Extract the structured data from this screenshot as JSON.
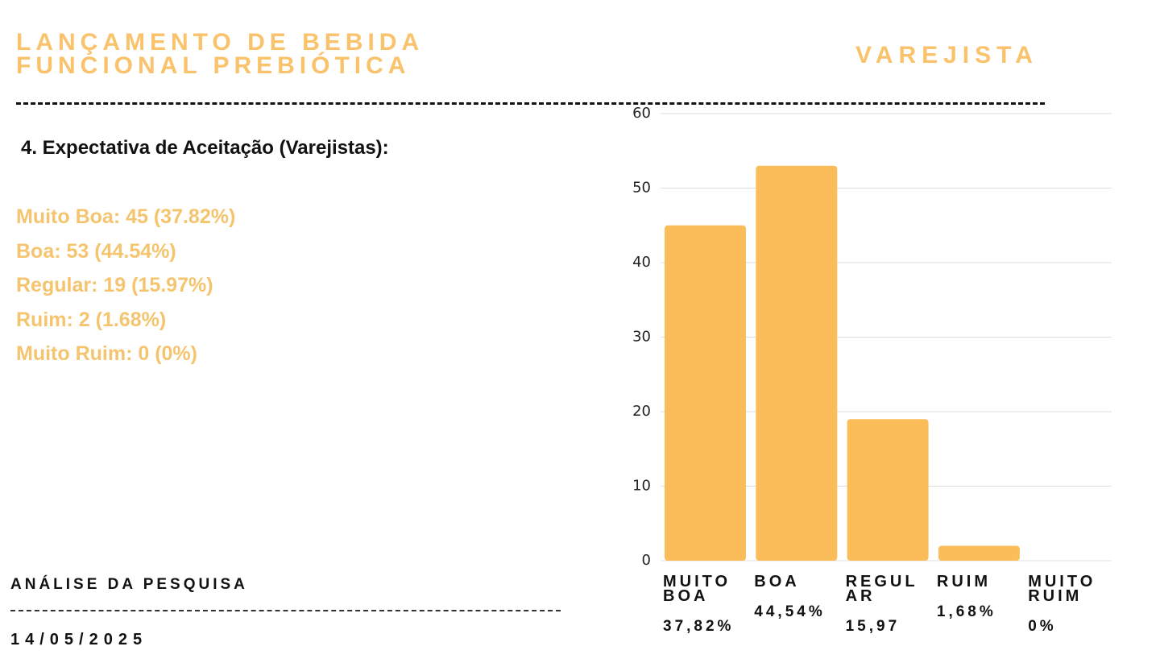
{
  "header": {
    "title_line1": "LANÇAMENTO DE BEBIDA",
    "title_line2": "FUNCIONAL PREBIÓTICA",
    "audience": "VAREJISTA"
  },
  "section": {
    "heading": "4. Expectativa de Aceitação (Varejistas):",
    "items": [
      "Muito Boa: 45 (37.82%)",
      "Boa: 53 (44.54%)",
      "Regular: 19 (15.97%)",
      "Ruim: 2 (1.68%)",
      "Muito Ruim: 0 (0%)"
    ]
  },
  "footer": {
    "label": "ANÁLISE DA PESQUISA",
    "date": "14/05/2025"
  },
  "chart_data": {
    "type": "bar",
    "categories": [
      "MUITO BOA",
      "BOA",
      "REGULAR",
      "RUIM",
      "MUITO RUIM"
    ],
    "values": [
      45,
      53,
      19,
      2,
      0
    ],
    "share_labels": [
      "37,82%",
      "44,54%",
      "15,97",
      "1,68%",
      "0%"
    ],
    "color": "#fbbd5a",
    "ylim": [
      0,
      60
    ],
    "yticks": [
      0,
      10,
      20,
      30,
      40,
      50,
      60
    ],
    "grid": true
  }
}
